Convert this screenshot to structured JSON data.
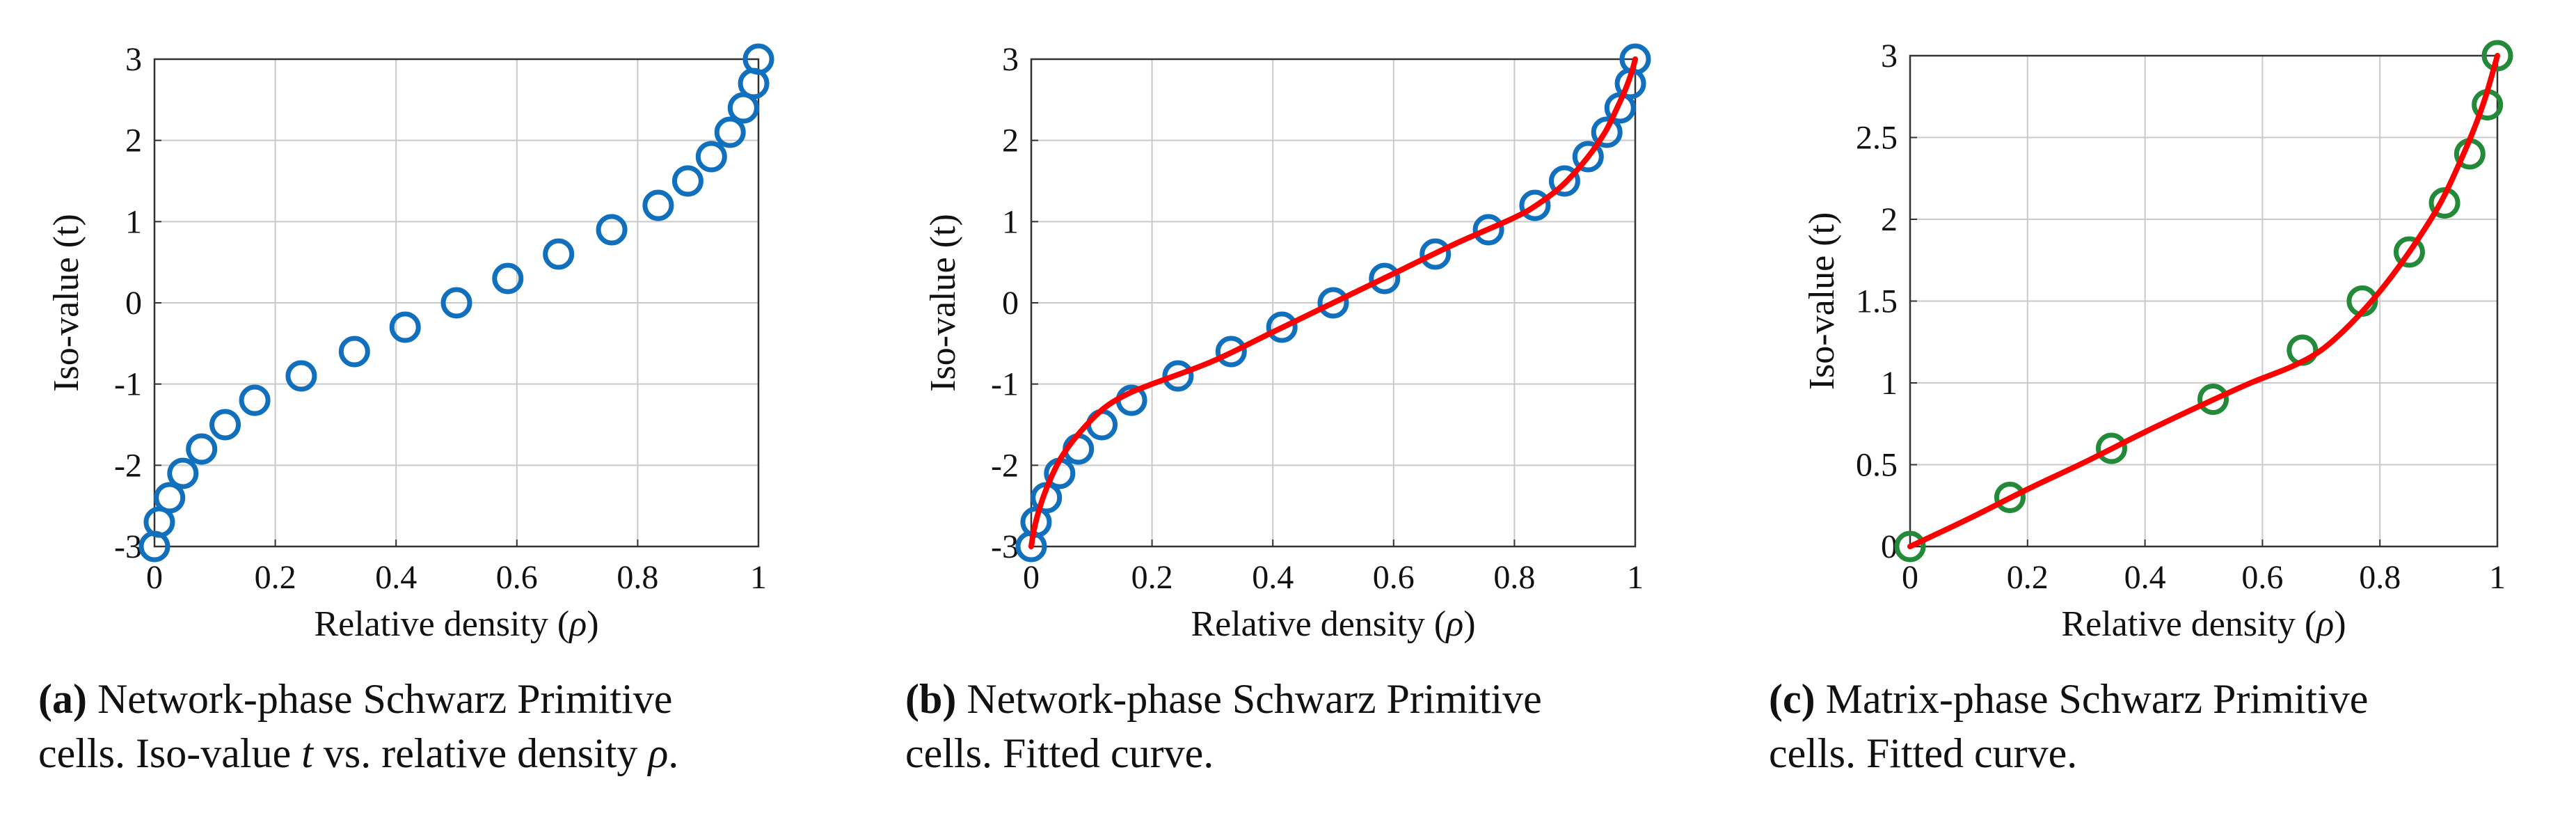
{
  "colors": {
    "blue": "#1170bd",
    "green": "#238a3a",
    "red": "#ff0000",
    "grid": "#c9c9c9",
    "axis": "#333333"
  },
  "chart_data": [
    {
      "type": "scatter",
      "xlabel": "Relative density (",
      "xlabel_symbol": "ρ",
      "xlabel_close": ")",
      "ylabel": "Iso-value (t)",
      "xlim": [
        0,
        1
      ],
      "ylim": [
        -3,
        3
      ],
      "xticks": [
        "0",
        "0.2",
        "0.4",
        "0.6",
        "0.8",
        "1"
      ],
      "yticks": [
        "-3",
        "-2",
        "-1",
        "0",
        "1",
        "2",
        "3"
      ],
      "series": [
        {
          "name": "data",
          "marker": "circle",
          "color": "blue",
          "x": [
            0,
            0.008,
            0.025,
            0.047,
            0.078,
            0.117,
            0.166,
            0.243,
            0.331,
            0.415,
            0.5,
            0.585,
            0.669,
            0.757,
            0.834,
            0.883,
            0.922,
            0.953,
            0.975,
            0.992,
            1.0
          ],
          "y": [
            -3,
            -2.7,
            -2.4,
            -2.1,
            -1.8,
            -1.5,
            -1.2,
            -0.9,
            -0.6,
            -0.3,
            0,
            0.3,
            0.6,
            0.9,
            1.2,
            1.5,
            1.8,
            2.1,
            2.4,
            2.7,
            3.0
          ]
        }
      ],
      "caption": {
        "label": "(a)",
        "line1": " Network-phase Schwarz Primitive",
        "line2a": "cells. Iso-value ",
        "line2_t": "t",
        "line2b": " vs. relative density ",
        "line2_rho": "ρ",
        "line2c": "."
      }
    },
    {
      "type": "scatter",
      "xlabel": "Relative density (",
      "xlabel_symbol": "ρ",
      "xlabel_close": ")",
      "ylabel": "Iso-value (t)",
      "xlim": [
        0,
        1
      ],
      "ylim": [
        -3,
        3
      ],
      "xticks": [
        "0",
        "0.2",
        "0.4",
        "0.6",
        "0.8",
        "1"
      ],
      "yticks": [
        "-3",
        "-2",
        "-1",
        "0",
        "1",
        "2",
        "3"
      ],
      "series": [
        {
          "name": "data",
          "marker": "circle",
          "color": "blue",
          "x": [
            0,
            0.008,
            0.025,
            0.047,
            0.078,
            0.117,
            0.166,
            0.243,
            0.331,
            0.415,
            0.5,
            0.585,
            0.669,
            0.757,
            0.834,
            0.883,
            0.922,
            0.953,
            0.975,
            0.992,
            1.0
          ],
          "y": [
            -3,
            -2.7,
            -2.4,
            -2.1,
            -1.8,
            -1.5,
            -1.2,
            -0.9,
            -0.6,
            -0.3,
            0,
            0.3,
            0.6,
            0.9,
            1.2,
            1.5,
            1.8,
            2.1,
            2.4,
            2.7,
            3.0
          ]
        },
        {
          "name": "fit",
          "marker": "line",
          "color": "red",
          "x": [
            0,
            0.005,
            0.015,
            0.03,
            0.05,
            0.08,
            0.12,
            0.16,
            0.2,
            0.3,
            0.4,
            0.5,
            0.6,
            0.7,
            0.8,
            0.84,
            0.88,
            0.92,
            0.95,
            0.97,
            0.985,
            0.995,
            1.0
          ],
          "y": [
            -3,
            -2.78,
            -2.5,
            -2.2,
            -1.9,
            -1.6,
            -1.3,
            -1.12,
            -1.0,
            -0.72,
            -0.36,
            0,
            0.36,
            0.72,
            1.05,
            1.22,
            1.45,
            1.78,
            2.1,
            2.4,
            2.65,
            2.86,
            3.0
          ]
        }
      ],
      "caption": {
        "label": "(b)",
        "line1": " Network-phase Schwarz Primitive",
        "line2": "cells. Fitted curve."
      }
    },
    {
      "type": "scatter",
      "xlabel": "Relative density (",
      "xlabel_symbol": "ρ",
      "xlabel_close": ")",
      "ylabel": "Iso-value (t)",
      "xlim": [
        0,
        1
      ],
      "ylim": [
        0,
        3
      ],
      "xticks": [
        "0",
        "0.2",
        "0.4",
        "0.6",
        "0.8",
        "1"
      ],
      "yticks": [
        "0",
        "0.5",
        "1",
        "1.5",
        "2",
        "2.5",
        "3"
      ],
      "series": [
        {
          "name": "data",
          "marker": "circle",
          "color": "green",
          "x": [
            0,
            0.17,
            0.343,
            0.516,
            0.668,
            0.77,
            0.85,
            0.91,
            0.953,
            0.983,
            1.0
          ],
          "y": [
            0,
            0.3,
            0.6,
            0.9,
            1.2,
            1.5,
            1.8,
            2.1,
            2.4,
            2.7,
            3.0
          ]
        },
        {
          "name": "fit",
          "marker": "line",
          "color": "red",
          "x": [
            0,
            0.1,
            0.2,
            0.3,
            0.4,
            0.5,
            0.58,
            0.65,
            0.7,
            0.75,
            0.8,
            0.85,
            0.9,
            0.93,
            0.96,
            0.98,
            1.0
          ],
          "y": [
            0,
            0.17,
            0.35,
            0.52,
            0.7,
            0.87,
            1.0,
            1.1,
            1.2,
            1.36,
            1.56,
            1.8,
            2.08,
            2.3,
            2.55,
            2.75,
            3.0
          ]
        }
      ],
      "caption": {
        "label": "(c)",
        "line1": " Matrix-phase Schwarz Primitive",
        "line2": "cells. Fitted curve."
      }
    }
  ]
}
